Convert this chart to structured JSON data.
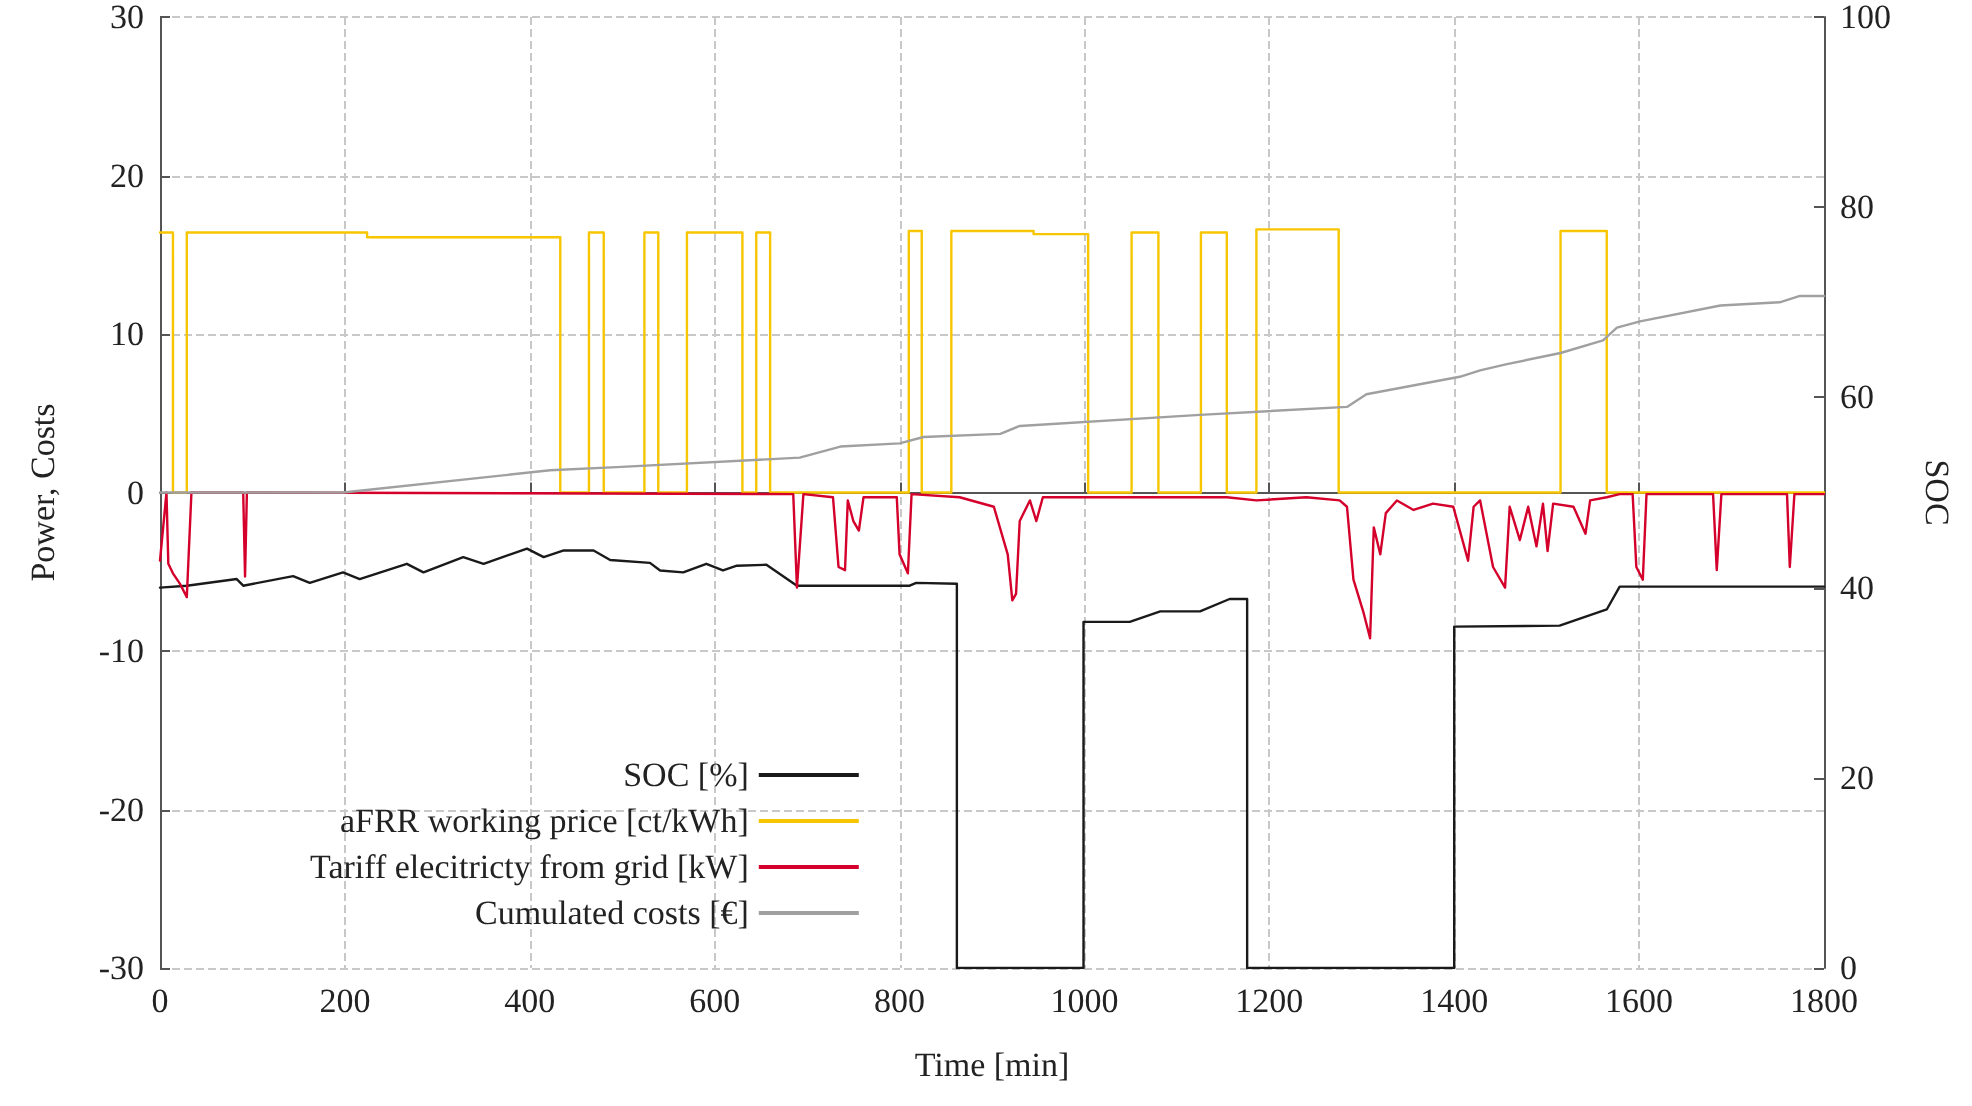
{
  "chart_data": {
    "type": "line",
    "xlabel": "Time [min]",
    "ylabel": "Power, Costs",
    "y2label": "SOC",
    "xlim": [
      0,
      1800
    ],
    "xticks": [
      0,
      200,
      400,
      600,
      800,
      1000,
      1200,
      1400,
      1600,
      1800
    ],
    "ylim": [
      -30,
      30
    ],
    "yticks": [
      -30,
      -20,
      -10,
      0,
      10,
      20,
      30
    ],
    "y2lim": [
      0,
      100
    ],
    "y2ticks": [
      0,
      20,
      40,
      60,
      80,
      100
    ],
    "grid": true,
    "legend": "bottom left",
    "marker": "none",
    "line_style": "solid",
    "series": [
      {
        "name": "SOC [%]",
        "color": "#1a1a1a",
        "axis": "y2",
        "x": [
          0,
          29,
          83,
          90,
          144,
          162,
          198,
          216,
          267,
          285,
          328,
          350,
          397,
          415,
          436,
          469,
          487,
          530,
          541,
          566,
          591,
          609,
          624,
          656,
          689,
          811,
          818,
          862,
          862,
          999,
          999,
          1049,
          1082,
          1125,
          1157,
          1176,
          1176,
          1400,
          1400,
          1514,
          1565,
          1579,
          1800
        ],
        "values": [
          40,
          40.2,
          40.9,
          40.2,
          41.2,
          40.5,
          41.6,
          40.9,
          42.5,
          41.6,
          43.2,
          42.5,
          44.1,
          43.2,
          43.9,
          43.9,
          42.9,
          42.6,
          41.8,
          41.6,
          42.5,
          41.8,
          42.3,
          42.4,
          40.2,
          40.2,
          40.5,
          40.4,
          0,
          0,
          36.4,
          36.4,
          37.5,
          37.5,
          38.8,
          38.8,
          0,
          0,
          35.9,
          36,
          37.7,
          40.1,
          40.1
        ]
      },
      {
        "name": "aFRR working price [ct/kWh]",
        "color": "#f7c600",
        "x": [
          0,
          14,
          14,
          29,
          29,
          224,
          224,
          433,
          433,
          464,
          464,
          480,
          480,
          524,
          524,
          539,
          539,
          570,
          570,
          630,
          630,
          645,
          645,
          660,
          660,
          810,
          810,
          824,
          824,
          856,
          856,
          945,
          945,
          1004,
          1004,
          1051,
          1051,
          1080,
          1080,
          1126,
          1126,
          1154,
          1154,
          1186,
          1186,
          1275,
          1275,
          1515,
          1515,
          1565,
          1565,
          1800
        ],
        "values": [
          16.4,
          16.4,
          0,
          0,
          16.4,
          16.4,
          16.1,
          16.1,
          0,
          0,
          16.4,
          16.4,
          0,
          0,
          16.4,
          16.4,
          0,
          0,
          16.4,
          16.4,
          0,
          0,
          16.4,
          16.4,
          0,
          0,
          16.5,
          16.5,
          0,
          0,
          16.5,
          16.5,
          16.3,
          16.3,
          0,
          0,
          16.4,
          16.4,
          0,
          0,
          16.4,
          16.4,
          0,
          0,
          16.6,
          16.6,
          0,
          0,
          16.5,
          16.5,
          0,
          0
        ]
      },
      {
        "name": "Tariff elecitricty from grid [kW]",
        "color": "#d4002b",
        "x": [
          0,
          7,
          9,
          14,
          22,
          29,
          34,
          90,
          92,
          94,
          685,
          689,
          696,
          728,
          734,
          741,
          744,
          750,
          756,
          761,
          797,
          800,
          809,
          813,
          865,
          902,
          917,
          922,
          926,
          930,
          941,
          948,
          955,
          1009,
          1154,
          1186,
          1240,
          1276,
          1284,
          1291,
          1302,
          1309,
          1313,
          1320,
          1326,
          1338,
          1356,
          1377,
          1399,
          1415,
          1421,
          1428,
          1442,
          1455,
          1460,
          1471,
          1480,
          1489,
          1496,
          1501,
          1507,
          1529,
          1542,
          1547,
          1565,
          1579,
          1593,
          1597,
          1604,
          1608,
          1680,
          1684,
          1689,
          1760,
          1763,
          1768,
          1800
        ],
        "values": [
          -4.3,
          0,
          -4.5,
          -5.1,
          -5.8,
          -6.6,
          0,
          0,
          -5.3,
          0,
          -0.1,
          -6.0,
          -0.1,
          -0.3,
          -4.7,
          -4.9,
          -0.5,
          -1.8,
          -2.4,
          -0.3,
          -0.3,
          -3.9,
          -5.1,
          -0.1,
          -0.3,
          -0.9,
          -3.9,
          -6.8,
          -6.4,
          -1.8,
          -0.5,
          -1.8,
          -0.3,
          -0.3,
          -0.3,
          -0.5,
          -0.3,
          -0.5,
          -0.9,
          -5.5,
          -7.6,
          -9.2,
          -2.2,
          -3.9,
          -1.3,
          -0.5,
          -1.1,
          -0.7,
          -0.9,
          -4.3,
          -0.9,
          -0.5,
          -4.7,
          -6.0,
          -0.9,
          -3.0,
          -0.9,
          -3.4,
          -0.7,
          -3.7,
          -0.7,
          -0.9,
          -2.6,
          -0.5,
          -0.3,
          -0.1,
          -0.1,
          -4.7,
          -5.5,
          -0.1,
          -0.1,
          -4.9,
          -0.1,
          -0.1,
          -4.7,
          -0.1,
          -0.1
        ]
      },
      {
        "name": "Cumulated costs [€]",
        "color": "#a0a0a0",
        "x": [
          0,
          198,
          422,
          494,
          692,
          736,
          800,
          826,
          909,
          930,
          1125,
          1284,
          1305,
          1406,
          1428,
          1457,
          1515,
          1561,
          1576,
          1601,
          1688,
          1752,
          1774,
          1800
        ],
        "values": [
          0,
          0,
          1.4,
          1.6,
          2.2,
          2.9,
          3.1,
          3.5,
          3.7,
          4.2,
          4.9,
          5.4,
          6.2,
          7.3,
          7.7,
          8.1,
          8.8,
          9.6,
          10.4,
          10.8,
          11.8,
          12.0,
          12.4,
          12.4
        ]
      }
    ]
  }
}
